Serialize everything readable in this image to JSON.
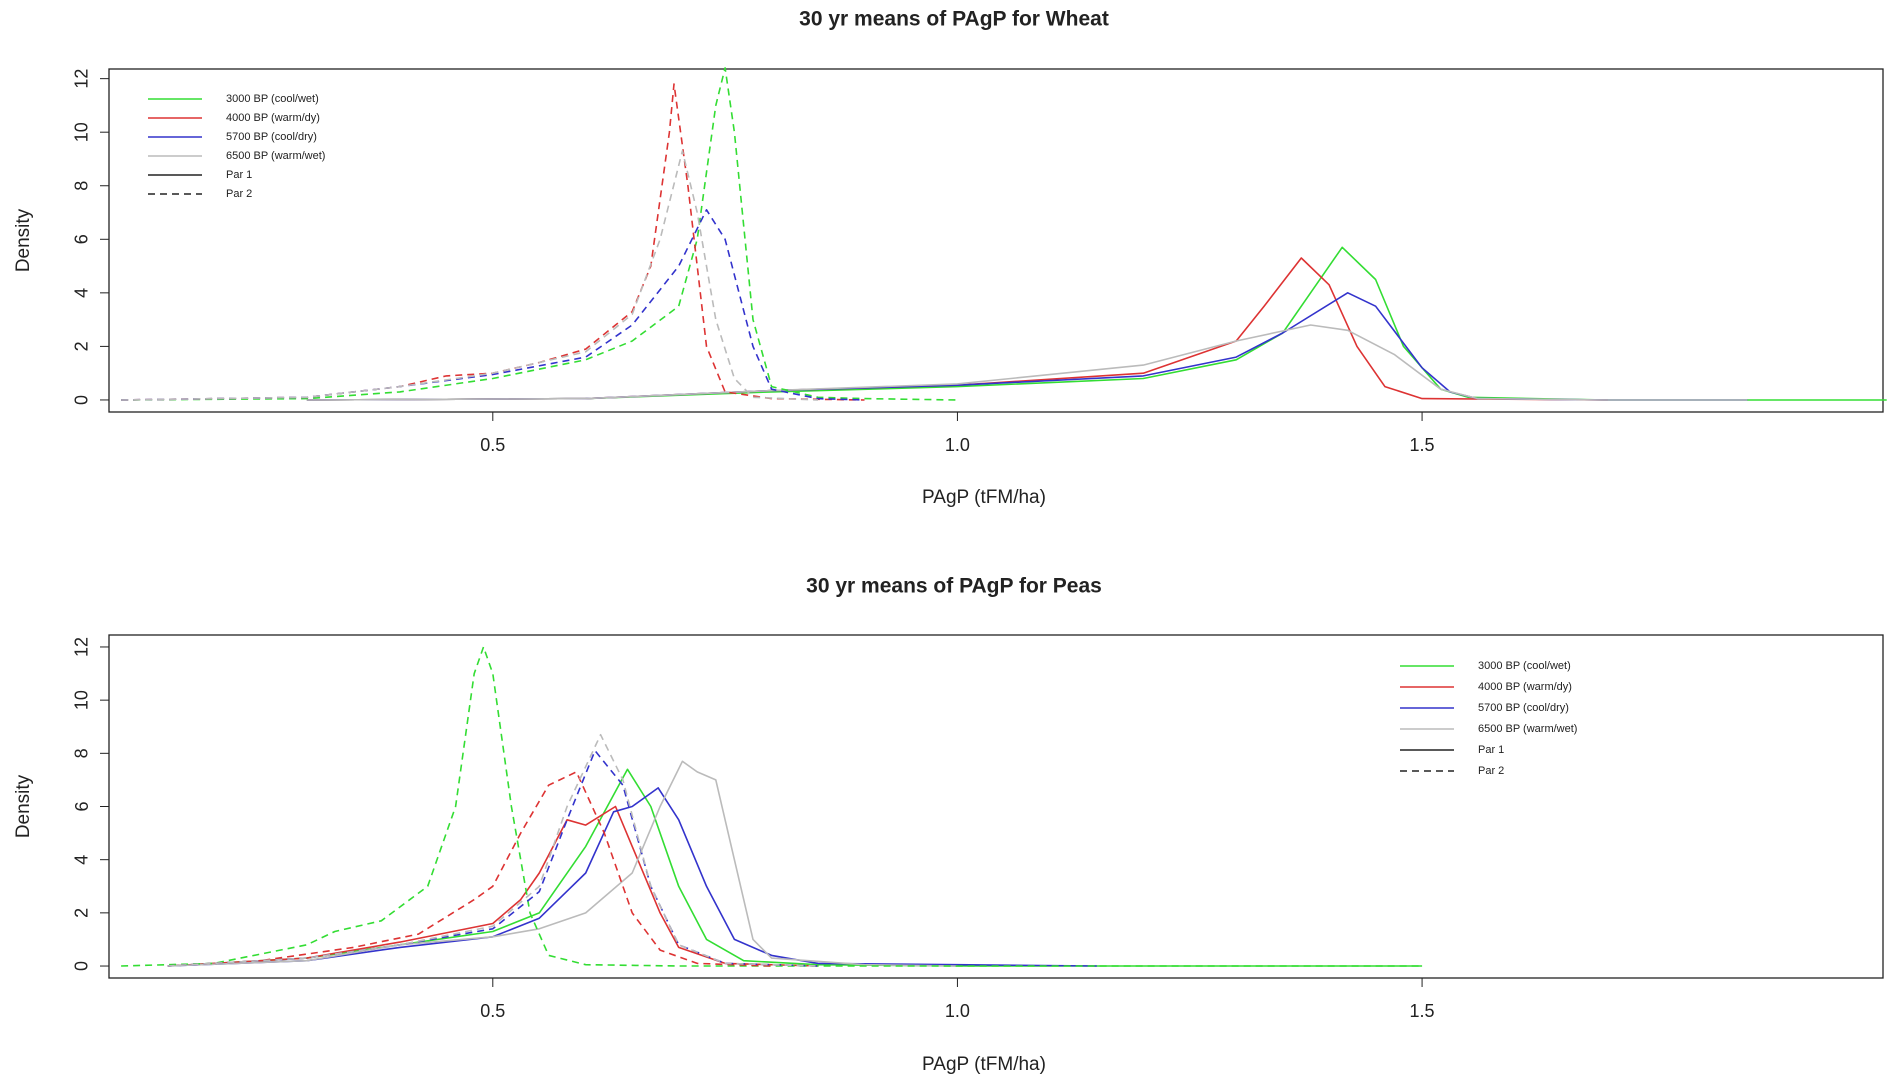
{
  "chart_data": [
    {
      "type": "line",
      "title": "30 yr means of PAgP for Wheat",
      "x_label": "PAgP (tFM/ha)",
      "y_label": "Density",
      "xlim": [
        0.087,
        1.996
      ],
      "ylim": [
        -0.45,
        12.36
      ],
      "xticks": [
        0.5,
        {
          "value": 1,
          "label": "1.0"
        },
        1.5
      ],
      "yticks": [
        0,
        2,
        4,
        6,
        8,
        10,
        12
      ],
      "legend_position": "top-left",
      "series": [
        {
          "name": "3000 BP (cool/wet)",
          "color": "#33dd33",
          "par": "Par 1",
          "dashed": false,
          "x": [
            0.3,
            0.6,
            0.8,
            1.0,
            1.2,
            1.3,
            1.35,
            1.38,
            1.414,
            1.45,
            1.48,
            1.52,
            1.55,
            1.7,
            2.0
          ],
          "values": [
            0,
            0.05,
            0.3,
            0.5,
            0.8,
            1.5,
            2.5,
            4,
            5.7,
            4.5,
            2,
            0.4,
            0.1,
            0,
            0
          ]
        },
        {
          "name": "4000 BP (warm/dy)",
          "color": "#dd3333",
          "par": "Par 1",
          "dashed": false,
          "x": [
            0.3,
            0.6,
            0.8,
            1.0,
            1.2,
            1.3,
            1.33,
            1.37,
            1.4,
            1.43,
            1.46,
            1.5,
            1.7
          ],
          "values": [
            0,
            0.05,
            0.35,
            0.55,
            1.0,
            2.2,
            3.5,
            5.3,
            4.3,
            2,
            0.5,
            0.05,
            0
          ]
        },
        {
          "name": "5700 BP (cool/dry)",
          "color": "#3333cc",
          "par": "Par 1",
          "dashed": false,
          "x": [
            0.3,
            0.6,
            0.8,
            1.0,
            1.2,
            1.3,
            1.35,
            1.42,
            1.45,
            1.5,
            1.53,
            1.56,
            1.7,
            1.85
          ],
          "values": [
            0,
            0.05,
            0.35,
            0.55,
            0.9,
            1.6,
            2.5,
            4.0,
            3.5,
            1.2,
            0.3,
            0.05,
            0,
            0
          ]
        },
        {
          "name": "6500 BP (warm/wet)",
          "color": "#bbbbbb",
          "par": "Par 1",
          "dashed": false,
          "x": [
            0.3,
            0.6,
            0.8,
            1.0,
            1.2,
            1.3,
            1.38,
            1.42,
            1.47,
            1.52,
            1.56,
            1.7,
            1.85
          ],
          "values": [
            0,
            0.05,
            0.35,
            0.6,
            1.3,
            2.2,
            2.8,
            2.6,
            1.7,
            0.4,
            0.05,
            0,
            0
          ]
        },
        {
          "name": "3000 BP (cool/wet)",
          "color": "#33dd33",
          "par": "Par 2",
          "dashed": true,
          "x": [
            0.1,
            0.3,
            0.4,
            0.5,
            0.6,
            0.65,
            0.7,
            0.72,
            0.74,
            0.75,
            0.76,
            0.78,
            0.8,
            0.85,
            0.9,
            1.0
          ],
          "values": [
            0,
            0.05,
            0.3,
            0.8,
            1.5,
            2.2,
            3.5,
            6,
            11,
            12.4,
            10,
            3,
            0.5,
            0.1,
            0.05,
            0
          ]
        },
        {
          "name": "4000 BP (warm/dy)",
          "color": "#dd3333",
          "par": "Par 2",
          "dashed": true,
          "x": [
            0.1,
            0.3,
            0.4,
            0.45,
            0.5,
            0.55,
            0.6,
            0.65,
            0.67,
            0.69,
            0.695,
            0.71,
            0.73,
            0.75,
            0.8,
            0.9
          ],
          "values": [
            0,
            0.1,
            0.5,
            0.9,
            1.0,
            1.4,
            1.9,
            3.3,
            5,
            10,
            11.8,
            8,
            2,
            0.3,
            0.05,
            0
          ]
        },
        {
          "name": "5700 BP (cool/dry)",
          "color": "#3333cc",
          "par": "Par 2",
          "dashed": true,
          "x": [
            0.1,
            0.3,
            0.4,
            0.5,
            0.6,
            0.65,
            0.7,
            0.73,
            0.75,
            0.78,
            0.8,
            0.85,
            0.9
          ],
          "values": [
            0,
            0.1,
            0.5,
            0.95,
            1.6,
            2.8,
            5,
            7.1,
            6,
            2,
            0.4,
            0.05,
            0
          ]
        },
        {
          "name": "6500 BP (warm/wet)",
          "color": "#bbbbbb",
          "par": "Par 2",
          "dashed": true,
          "x": [
            0.1,
            0.3,
            0.4,
            0.5,
            0.6,
            0.65,
            0.68,
            0.704,
            0.72,
            0.74,
            0.76,
            0.78,
            0.85
          ],
          "values": [
            0,
            0.1,
            0.5,
            1.0,
            1.8,
            3.2,
            6,
            9.3,
            7,
            3,
            0.8,
            0.1,
            0
          ]
        }
      ]
    },
    {
      "type": "line",
      "title": "30 yr means of PAgP for Peas",
      "x_label": "PAgP (tFM/ha)",
      "y_label": "Density",
      "xlim": [
        0.087,
        1.996
      ],
      "ylim": [
        -0.45,
        12.45
      ],
      "xticks": [
        0.5,
        {
          "value": 1,
          "label": "1.0"
        },
        1.5
      ],
      "yticks": [
        0,
        2,
        4,
        6,
        8,
        10,
        12
      ],
      "legend_position": "top-right",
      "series": [
        {
          "name": "3000 BP (cool/wet)",
          "color": "#33dd33",
          "par": "Par 1",
          "dashed": false,
          "x": [
            0.15,
            0.3,
            0.4,
            0.5,
            0.55,
            0.6,
            0.645,
            0.67,
            0.7,
            0.73,
            0.77,
            0.85,
            1.0,
            1.5
          ],
          "values": [
            0,
            0.3,
            0.8,
            1.3,
            2,
            4.5,
            7.4,
            6,
            3,
            1,
            0.2,
            0.05,
            0,
            0
          ]
        },
        {
          "name": "4000 BP (warm/dy)",
          "color": "#dd3333",
          "par": "Par 1",
          "dashed": false,
          "x": [
            0.15,
            0.3,
            0.4,
            0.5,
            0.53,
            0.55,
            0.58,
            0.6,
            0.632,
            0.65,
            0.68,
            0.7,
            0.75,
            0.85
          ],
          "values": [
            0,
            0.3,
            0.9,
            1.6,
            2.5,
            3.5,
            5.5,
            5.3,
            6.0,
            4.5,
            2,
            0.7,
            0.1,
            0
          ]
        },
        {
          "name": "5700 BP (cool/dry)",
          "color": "#3333cc",
          "par": "Par 1",
          "dashed": false,
          "x": [
            0.15,
            0.3,
            0.4,
            0.5,
            0.55,
            0.6,
            0.63,
            0.65,
            0.678,
            0.7,
            0.73,
            0.76,
            0.8,
            0.85,
            1.0,
            1.15
          ],
          "values": [
            0,
            0.2,
            0.7,
            1.1,
            1.8,
            3.5,
            5.8,
            6,
            6.7,
            5.5,
            3,
            1,
            0.4,
            0.1,
            0.05,
            0
          ]
        },
        {
          "name": "6500 BP (warm/wet)",
          "color": "#bbbbbb",
          "par": "Par 1",
          "dashed": false,
          "x": [
            0.15,
            0.3,
            0.4,
            0.5,
            0.55,
            0.6,
            0.65,
            0.68,
            0.704,
            0.72,
            0.74,
            0.76,
            0.78,
            0.8,
            0.9,
            1.0
          ],
          "values": [
            0,
            0.2,
            0.8,
            1.1,
            1.4,
            2,
            3.5,
            6,
            7.7,
            7.3,
            7,
            4,
            1,
            0.3,
            0.05,
            0
          ]
        },
        {
          "name": "3000 BP (cool/wet)",
          "color": "#33dd33",
          "par": "Par 2",
          "dashed": true,
          "x": [
            0.1,
            0.2,
            0.3,
            0.33,
            0.38,
            0.43,
            0.46,
            0.48,
            0.49,
            0.5,
            0.52,
            0.54,
            0.56,
            0.6,
            0.7,
            1.5
          ],
          "values": [
            0,
            0.1,
            0.8,
            1.3,
            1.7,
            3,
            6,
            11,
            12,
            11,
            6,
            2,
            0.4,
            0.05,
            0,
            0
          ]
        },
        {
          "name": "4000 BP (warm/dy)",
          "color": "#dd3333",
          "par": "Par 2",
          "dashed": true,
          "x": [
            0.15,
            0.25,
            0.35,
            0.42,
            0.48,
            0.5,
            0.53,
            0.56,
            0.59,
            0.62,
            0.65,
            0.68,
            0.72,
            0.8
          ],
          "values": [
            0,
            0.2,
            0.7,
            1.2,
            2.5,
            3,
            5,
            6.8,
            7.3,
            5,
            2,
            0.6,
            0.1,
            0
          ]
        },
        {
          "name": "5700 BP (cool/dry)",
          "color": "#3333cc",
          "par": "Par 2",
          "dashed": true,
          "x": [
            0.15,
            0.3,
            0.4,
            0.5,
            0.55,
            0.58,
            0.61,
            0.64,
            0.67,
            0.7,
            0.75,
            0.85
          ],
          "values": [
            0,
            0.3,
            0.8,
            1.4,
            2.8,
            5.5,
            8.1,
            6.8,
            3,
            0.8,
            0.1,
            0
          ]
        },
        {
          "name": "6500 BP (warm/wet)",
          "color": "#bbbbbb",
          "par": "Par 2",
          "dashed": true,
          "x": [
            0.15,
            0.3,
            0.4,
            0.5,
            0.55,
            0.58,
            0.616,
            0.64,
            0.67,
            0.7,
            0.75,
            0.85
          ],
          "values": [
            0,
            0.3,
            0.8,
            1.5,
            3,
            6,
            8.7,
            7,
            3,
            0.8,
            0.1,
            0
          ]
        }
      ]
    }
  ]
}
